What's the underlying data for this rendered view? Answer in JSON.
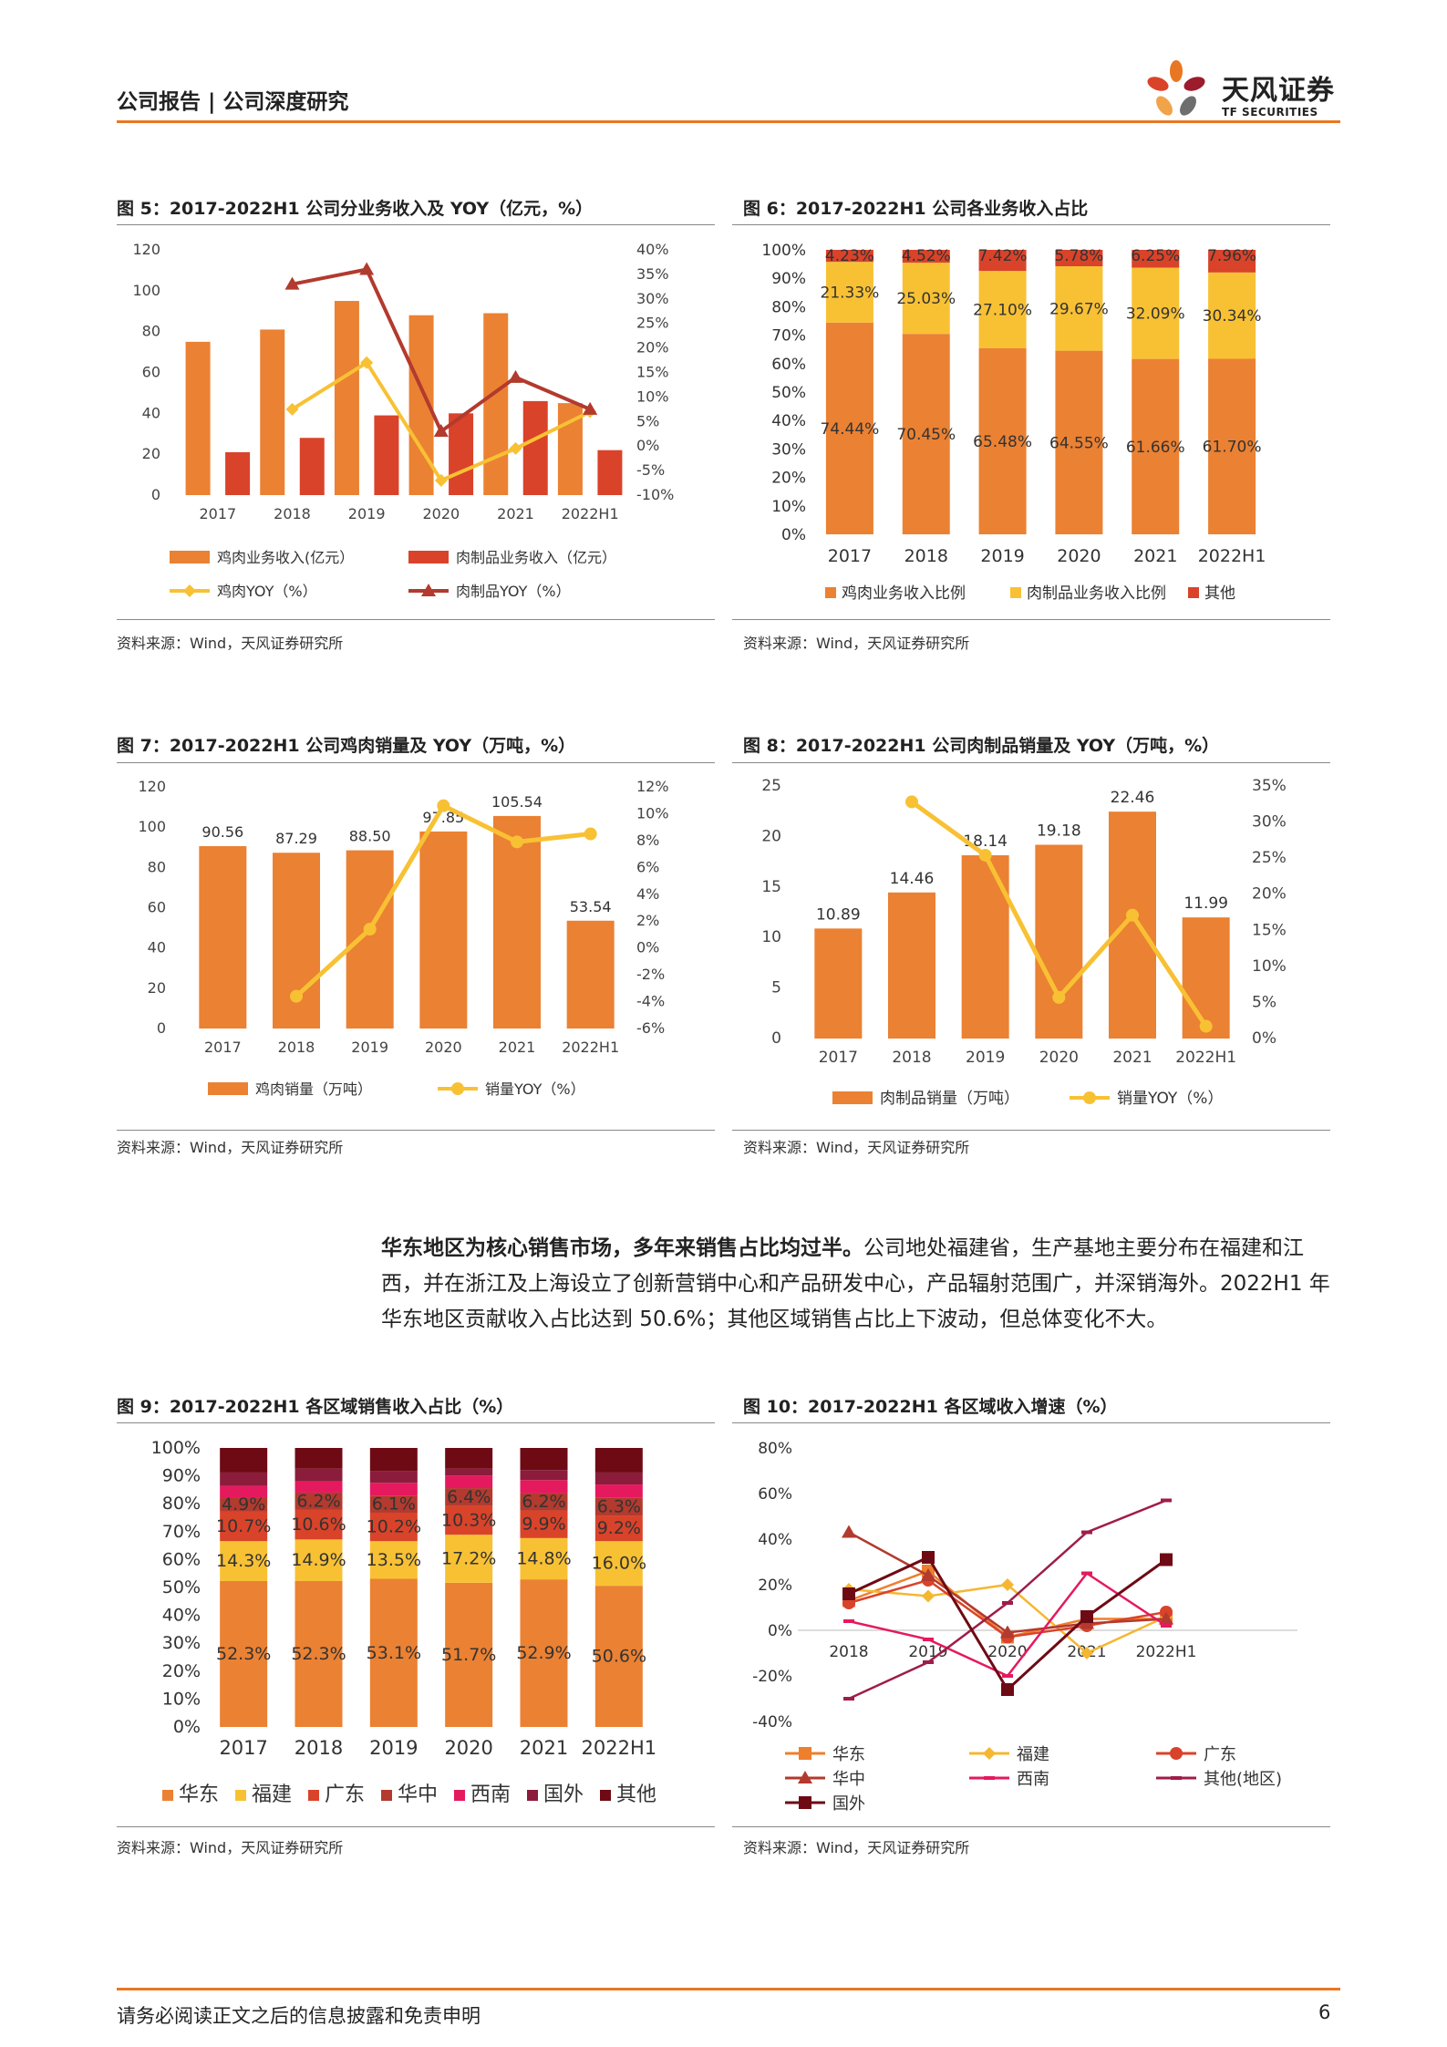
{
  "header": {
    "title": "公司报告 | 公司深度研究",
    "logo_cn": "天风证券",
    "logo_en": "TF SECURITIES"
  },
  "colors": {
    "orange": "#EB8132",
    "red": "#D9432A",
    "yellow": "#F8C134",
    "darkred": "#B23A2E",
    "maroon": "#6E0A14",
    "magenta": "#E5195E",
    "wine": "#8B1C3C",
    "accent": "#E87722"
  },
  "figures": {
    "fig5": {
      "title": "图 5：2017-2022H1 公司分业务收入及 YOY（亿元，%）",
      "source": "资料来源：Wind，天风证券研究所"
    },
    "fig6": {
      "title": "图 6：2017-2022H1 公司各业务收入占比",
      "source": "资料来源：Wind，天风证券研究所"
    },
    "fig7": {
      "title": "图 7：2017-2022H1 公司鸡肉销量及 YOY（万吨，%）",
      "source": "资料来源：Wind，天风证券研究所"
    },
    "fig8": {
      "title": "图 8：2017-2022H1 公司肉制品销量及 YOY（万吨，%）",
      "source": "资料来源：Wind，天风证券研究所"
    },
    "fig9": {
      "title": "图 9：2017-2022H1 各区域销售收入占比（%）",
      "source": "资料来源：Wind，天风证券研究所"
    },
    "fig10": {
      "title": "图 10：2017-2022H1 各区域收入增速（%）",
      "source": "资料来源：Wind，天风证券研究所"
    }
  },
  "paragraph": {
    "bold": "华东地区为核心销售市场，多年来销售占比均过半。",
    "text": "公司地处福建省，生产基地主要分布在福建和江西，并在浙江及上海设立了创新营销中心和产品研发中心，产品辐射范围广，并深销海外。2022H1 年华东地区贡献收入占比达到 50.6%；其他区域销售占比上下波动，但总体变化不大。"
  },
  "footer": {
    "disclaimer": "请务必阅读正文之后的信息披露和免责申明",
    "page": "6"
  },
  "chart_data": [
    {
      "id": "fig5",
      "type": "bar",
      "categories": [
        "2017",
        "2018",
        "2019",
        "2020",
        "2021",
        "2022H1"
      ],
      "ylim": [
        0,
        120
      ],
      "yticks": [
        "0",
        "20",
        "40",
        "60",
        "80",
        "100",
        "120"
      ],
      "y2lim": [
        -10,
        40
      ],
      "y2ticks": [
        "-10%",
        "-5%",
        "0%",
        "5%",
        "10%",
        "15%",
        "20%",
        "25%",
        "30%",
        "35%",
        "40%"
      ],
      "series": [
        {
          "name": "鸡肉业务收入(亿元）",
          "type": "bar",
          "values": [
            75,
            81,
            95,
            88,
            89,
            45
          ]
        },
        {
          "name": "肉制品业务收入（亿元）",
          "type": "bar",
          "values": [
            21,
            28,
            39,
            40,
            46,
            22
          ]
        },
        {
          "name": "鸡肉YOY（%）",
          "type": "line",
          "axis": "right",
          "values": [
            null,
            7.5,
            17,
            -7,
            -0.5,
            7
          ]
        },
        {
          "name": "肉制品YOY（%）",
          "type": "line",
          "axis": "right",
          "values": [
            null,
            33,
            36,
            3,
            14,
            7.5
          ]
        }
      ]
    },
    {
      "id": "fig6",
      "type": "bar",
      "stacked": true,
      "categories": [
        "2017",
        "2018",
        "2019",
        "2020",
        "2021",
        "2022H1"
      ],
      "ylim": [
        0,
        100
      ],
      "yticks": [
        "0%",
        "10%",
        "20%",
        "30%",
        "40%",
        "50%",
        "60%",
        "70%",
        "80%",
        "90%",
        "100%"
      ],
      "series": [
        {
          "name": "鸡肉业务收入比例",
          "values": [
            74.44,
            70.45,
            65.48,
            64.55,
            61.66,
            61.7
          ],
          "labels": [
            "74.44%",
            "70.45%",
            "65.48%",
            "64.55%",
            "61.66%",
            "61.70%"
          ]
        },
        {
          "name": "肉制品业务收入比例",
          "values": [
            21.33,
            25.03,
            27.1,
            29.67,
            32.09,
            30.34
          ],
          "labels": [
            "21.33%",
            "25.03%",
            "27.10%",
            "29.67%",
            "32.09%",
            "30.34%"
          ]
        },
        {
          "name": "其他",
          "values": [
            4.23,
            4.52,
            7.42,
            5.78,
            6.25,
            7.96
          ],
          "labels": [
            "4.23%",
            "4.52%",
            "7.42%",
            "5.78%",
            "6.25%",
            "7.96%"
          ]
        }
      ]
    },
    {
      "id": "fig7",
      "type": "bar",
      "categories": [
        "2017",
        "2018",
        "2019",
        "2020",
        "2021",
        "2022H1"
      ],
      "ylim": [
        0,
        120
      ],
      "yticks": [
        "0",
        "20",
        "40",
        "60",
        "80",
        "100",
        "120"
      ],
      "y2lim": [
        -6,
        12
      ],
      "y2ticks": [
        "-6%",
        "-4%",
        "-2%",
        "0%",
        "2%",
        "4%",
        "6%",
        "8%",
        "10%",
        "12%"
      ],
      "series": [
        {
          "name": "鸡肉销量（万吨）",
          "type": "bar",
          "values": [
            90.56,
            87.29,
            88.5,
            97.85,
            105.54,
            53.54
          ],
          "labels": [
            "90.56",
            "87.29",
            "88.50",
            "97.85",
            "105.54",
            "53.54"
          ]
        },
        {
          "name": "销量YOY（%）",
          "type": "line",
          "axis": "right",
          "values": [
            null,
            -3.6,
            1.4,
            10.6,
            7.9,
            8.5
          ]
        }
      ]
    },
    {
      "id": "fig8",
      "type": "bar",
      "categories": [
        "2017",
        "2018",
        "2019",
        "2020",
        "2021",
        "2022H1"
      ],
      "ylim": [
        0,
        25
      ],
      "yticks": [
        "0",
        "5",
        "10",
        "15",
        "20",
        "25"
      ],
      "y2lim": [
        0,
        35
      ],
      "y2ticks": [
        "0%",
        "5%",
        "10%",
        "15%",
        "20%",
        "25%",
        "30%",
        "35%"
      ],
      "series": [
        {
          "name": "肉制品销量（万吨）",
          "type": "bar",
          "values": [
            10.89,
            14.46,
            18.14,
            19.18,
            22.46,
            11.99
          ],
          "labels": [
            "10.89",
            "14.46",
            "18.14",
            "19.18",
            "22.46",
            "11.99"
          ]
        },
        {
          "name": "销量YOY（%）",
          "type": "line",
          "axis": "right",
          "values": [
            null,
            32.8,
            25.4,
            5.7,
            17.1,
            1.7
          ]
        }
      ]
    },
    {
      "id": "fig9",
      "type": "bar",
      "stacked": true,
      "categories": [
        "2017",
        "2018",
        "2019",
        "2020",
        "2021",
        "2022H1"
      ],
      "ylim": [
        0,
        100
      ],
      "yticks": [
        "0%",
        "10%",
        "20%",
        "30%",
        "40%",
        "50%",
        "60%",
        "70%",
        "80%",
        "90%",
        "100%"
      ],
      "series": [
        {
          "name": "华东",
          "values": [
            52.3,
            52.3,
            53.1,
            51.7,
            52.9,
            50.6
          ],
          "labels": [
            "52.3%",
            "52.3%",
            "53.1%",
            "51.7%",
            "52.9%",
            "50.6%"
          ]
        },
        {
          "name": "福建",
          "values": [
            14.3,
            14.9,
            13.5,
            17.2,
            14.8,
            16.0
          ],
          "labels": [
            "14.3%",
            "14.9%",
            "13.5%",
            "17.2%",
            "14.8%",
            "16.0%"
          ]
        },
        {
          "name": "广东",
          "values": [
            10.7,
            10.6,
            10.2,
            10.3,
            9.9,
            9.2
          ],
          "labels": [
            "10.7%",
            "10.6%",
            "10.2%",
            "10.3%",
            "9.9%",
            "9.2%"
          ]
        },
        {
          "name": "华中",
          "values": [
            4.9,
            6.2,
            6.1,
            6.4,
            6.2,
            6.3
          ],
          "labels": [
            "4.9%",
            "6.2%",
            "6.1%",
            "6.4%",
            "6.2%",
            "6.3%"
          ]
        },
        {
          "name": "西南",
          "values": [
            4.2,
            4.0,
            4.6,
            4.5,
            4.7,
            4.8
          ],
          "labels": []
        },
        {
          "name": "国外",
          "values": [
            4.8,
            4.6,
            4.3,
            2.5,
            3.6,
            4.3
          ],
          "labels": []
        },
        {
          "name": "其他",
          "values": [
            8.8,
            7.4,
            8.2,
            7.4,
            7.9,
            8.8
          ],
          "labels": []
        }
      ]
    },
    {
      "id": "fig10",
      "type": "line",
      "categories": [
        "2018",
        "2019",
        "2020",
        "2021",
        "2022H1"
      ],
      "ylim": [
        -40,
        80
      ],
      "yticks": [
        "-40%",
        "-20%",
        "0%",
        "20%",
        "40%",
        "60%",
        "80%"
      ],
      "series": [
        {
          "name": "华东",
          "values": [
            13,
            26,
            -3,
            5,
            5
          ]
        },
        {
          "name": "福建",
          "values": [
            18,
            15,
            20,
            -10,
            6
          ]
        },
        {
          "name": "广东",
          "values": [
            12,
            22,
            -3,
            2,
            8
          ]
        },
        {
          "name": "华中",
          "values": [
            43,
            24,
            -1,
            3,
            5
          ]
        },
        {
          "name": "西南",
          "values": [
            4,
            -4,
            -20,
            25,
            2
          ]
        },
        {
          "name": "其他(地区)",
          "values": [
            -30,
            -14,
            12,
            43,
            57
          ]
        },
        {
          "name": "国外",
          "values": [
            16,
            32,
            -26,
            6,
            31
          ]
        }
      ]
    }
  ]
}
